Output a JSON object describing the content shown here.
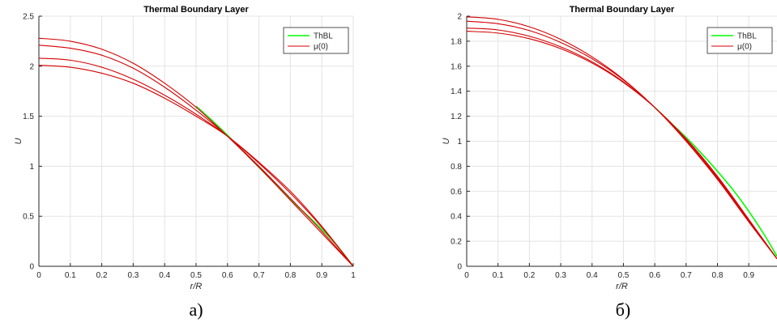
{
  "colors": {
    "thbl": "#00ff00",
    "mu": "#d40000",
    "grid": "#e3e3e3",
    "axis": "#262626"
  },
  "chart_data": [
    {
      "type": "line",
      "panel_caption": "а)",
      "title": "Thermal Boundary Layer",
      "xlabel": "r/R",
      "ylabel": "U",
      "xlim": [
        0,
        1
      ],
      "ylim": [
        0,
        2.5
      ],
      "xticks": [
        "0",
        "0.1",
        "0.2",
        "0.3",
        "0.4",
        "0.5",
        "0.6",
        "0.7",
        "0.8",
        "0.9",
        "1"
      ],
      "yticks": [
        "0",
        "0.5",
        "1",
        "1.5",
        "2",
        "2.5"
      ],
      "grid": true,
      "legend_position": "top-right",
      "legend": [
        "ThBL",
        "μ(0)"
      ],
      "series": [
        {
          "name": "ThBL",
          "color": "#00ff00",
          "x": [
            0.5,
            0.55,
            0.6,
            0.65,
            0.7,
            0.75,
            0.8,
            0.85,
            0.9,
            0.95,
            1.0
          ],
          "y": [
            1.6,
            1.46,
            1.31,
            1.15,
            0.99,
            0.83,
            0.67,
            0.52,
            0.37,
            0.2,
            0.0
          ]
        },
        {
          "name": "μ(0)",
          "color": "#d40000",
          "x": [
            0,
            0.1,
            0.2,
            0.3,
            0.4,
            0.5,
            0.6,
            0.7,
            0.8,
            0.9,
            1.0
          ],
          "y": [
            2.28,
            2.25,
            2.17,
            2.03,
            1.83,
            1.59,
            1.3,
            0.99,
            0.66,
            0.33,
            0.0
          ]
        },
        {
          "name": "μ(0)",
          "color": "#d40000",
          "x": [
            0,
            0.1,
            0.2,
            0.3,
            0.4,
            0.5,
            0.6,
            0.7,
            0.8,
            0.9,
            1.0
          ],
          "y": [
            2.21,
            2.18,
            2.11,
            1.98,
            1.79,
            1.56,
            1.3,
            1.0,
            0.68,
            0.35,
            0.0
          ]
        },
        {
          "name": "μ(0)",
          "color": "#d40000",
          "x": [
            0,
            0.1,
            0.2,
            0.3,
            0.4,
            0.5,
            0.6,
            0.7,
            0.8,
            0.9,
            1.0
          ],
          "y": [
            2.08,
            2.06,
            1.99,
            1.87,
            1.71,
            1.52,
            1.3,
            1.03,
            0.73,
            0.39,
            0.0
          ]
        },
        {
          "name": "μ(0)",
          "color": "#d40000",
          "x": [
            0,
            0.1,
            0.2,
            0.3,
            0.4,
            0.5,
            0.6,
            0.7,
            0.8,
            0.9,
            1.0
          ],
          "y": [
            2.01,
            1.99,
            1.93,
            1.83,
            1.68,
            1.5,
            1.3,
            1.04,
            0.75,
            0.4,
            0.0
          ]
        }
      ]
    },
    {
      "type": "line",
      "panel_caption": "б)",
      "title": "Thermal Boundary Layer",
      "xlabel": "r/R",
      "ylabel": "U",
      "xlim": [
        0,
        0.99
      ],
      "ylim": [
        0,
        2
      ],
      "xticks": [
        "0",
        "0.1",
        "0.2",
        "0.3",
        "0.4",
        "0.5",
        "0.6",
        "0.7",
        "0.8",
        "0.9"
      ],
      "yticks": [
        "0",
        "0.2",
        "0.4",
        "0.6",
        "0.8",
        "1",
        "1.2",
        "1.4",
        "1.6",
        "1.8",
        "2"
      ],
      "grid": true,
      "legend_position": "top-right",
      "legend": [
        "ThBL",
        "μ(0)"
      ],
      "series": [
        {
          "name": "ThBL",
          "color": "#00ff00",
          "x": [
            0.6,
            0.65,
            0.7,
            0.75,
            0.8,
            0.85,
            0.9,
            0.95,
            0.99
          ],
          "y": [
            1.27,
            1.15,
            1.03,
            0.9,
            0.76,
            0.61,
            0.44,
            0.25,
            0.08
          ]
        },
        {
          "name": "μ(0)",
          "color": "#d40000",
          "x": [
            0,
            0.1,
            0.2,
            0.3,
            0.4,
            0.5,
            0.6,
            0.7,
            0.8,
            0.9,
            0.99
          ],
          "y": [
            1.995,
            1.975,
            1.915,
            1.815,
            1.675,
            1.495,
            1.27,
            1.0,
            0.695,
            0.355,
            0.06
          ]
        },
        {
          "name": "μ(0)",
          "color": "#d40000",
          "x": [
            0,
            0.1,
            0.2,
            0.3,
            0.4,
            0.5,
            0.6,
            0.7,
            0.8,
            0.9,
            0.99
          ],
          "y": [
            1.96,
            1.94,
            1.885,
            1.79,
            1.66,
            1.49,
            1.27,
            1.005,
            0.705,
            0.365,
            0.06
          ]
        },
        {
          "name": "μ(0)",
          "color": "#d40000",
          "x": [
            0,
            0.1,
            0.2,
            0.3,
            0.4,
            0.5,
            0.6,
            0.7,
            0.8,
            0.9,
            0.99
          ],
          "y": [
            1.905,
            1.89,
            1.84,
            1.755,
            1.635,
            1.475,
            1.27,
            1.015,
            0.715,
            0.37,
            0.06
          ]
        },
        {
          "name": "μ(0)",
          "color": "#d40000",
          "x": [
            0,
            0.1,
            0.2,
            0.3,
            0.4,
            0.5,
            0.6,
            0.7,
            0.8,
            0.9,
            0.99
          ],
          "y": [
            1.88,
            1.865,
            1.82,
            1.74,
            1.625,
            1.47,
            1.27,
            1.02,
            0.72,
            0.375,
            0.06
          ]
        }
      ]
    }
  ]
}
